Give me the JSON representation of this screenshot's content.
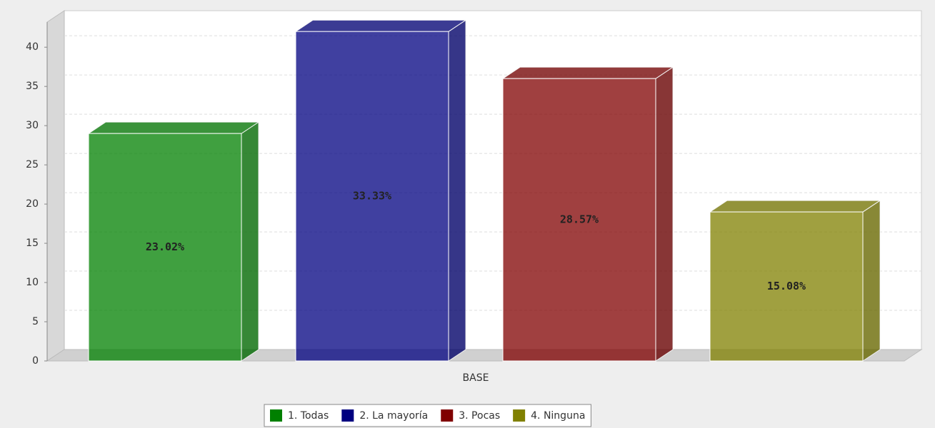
{
  "chart_data": {
    "type": "bar",
    "categories": [
      "BASE"
    ],
    "series": [
      {
        "name": "1. Todas",
        "color": "#008000",
        "values": [
          29
        ],
        "value_labels": [
          "23.02%"
        ]
      },
      {
        "name": "2. La mayoría",
        "color": "#000080",
        "values": [
          42
        ],
        "value_labels": [
          "33.33%"
        ]
      },
      {
        "name": "3. Pocas",
        "color": "#800000",
        "values": [
          36
        ],
        "value_labels": [
          "28.57%"
        ]
      },
      {
        "name": "4. Ninguna",
        "color": "#808000",
        "values": [
          19
        ],
        "value_labels": [
          "15.08%"
        ]
      }
    ],
    "ylim": [
      0,
      43.2
    ],
    "yticks": [
      0,
      5,
      10,
      15,
      20,
      25,
      30,
      35,
      40
    ],
    "grid": true,
    "legend": "bottom"
  }
}
